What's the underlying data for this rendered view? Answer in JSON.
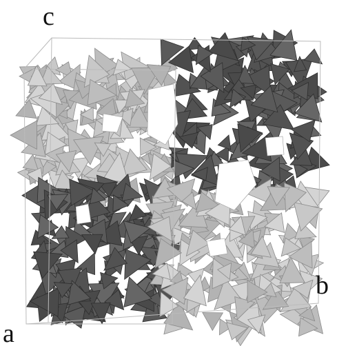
{
  "labels": {
    "c": "c",
    "b": "b",
    "a": "a"
  }
}
